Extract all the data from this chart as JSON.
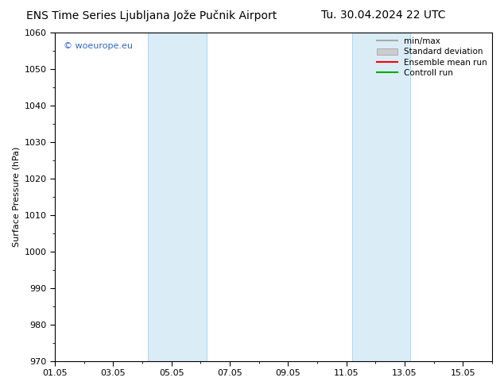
{
  "title_left": "ENS Time Series Ljubljana Jože Pučnik Airport",
  "title_right": "Tu. 30.04.2024 22 UTC",
  "ylabel": "Surface Pressure (hPa)",
  "ylim": [
    970,
    1060
  ],
  "yticks": [
    970,
    980,
    990,
    1000,
    1010,
    1020,
    1030,
    1040,
    1050,
    1060
  ],
  "xlim_start": 0,
  "xlim_end": 15,
  "xtick_positions": [
    0,
    2,
    4,
    6,
    8,
    10,
    12,
    14
  ],
  "xtick_labels": [
    "01.05",
    "03.05",
    "05.05",
    "07.05",
    "09.05",
    "11.05",
    "13.05",
    "15.05"
  ],
  "shaded_bands": [
    {
      "xmin": 3.2,
      "xmax": 5.2
    },
    {
      "xmin": 10.2,
      "xmax": 12.2
    }
  ],
  "band_color": "#daedf7",
  "band_edge_color": "#b8d8ea",
  "background_color": "#ffffff",
  "watermark": "© woeurope.eu",
  "watermark_color": "#3366cc",
  "legend_entries": [
    {
      "label": "min/max",
      "color": "#aaaaaa",
      "type": "line"
    },
    {
      "label": "Standard deviation",
      "color": "#cccccc",
      "type": "box"
    },
    {
      "label": "Ensemble mean run",
      "color": "#ff0000",
      "type": "line"
    },
    {
      "label": "Controll run",
      "color": "#00aa00",
      "type": "line"
    }
  ],
  "title_fontsize": 10,
  "axis_fontsize": 8,
  "tick_fontsize": 8,
  "legend_fontsize": 7.5
}
